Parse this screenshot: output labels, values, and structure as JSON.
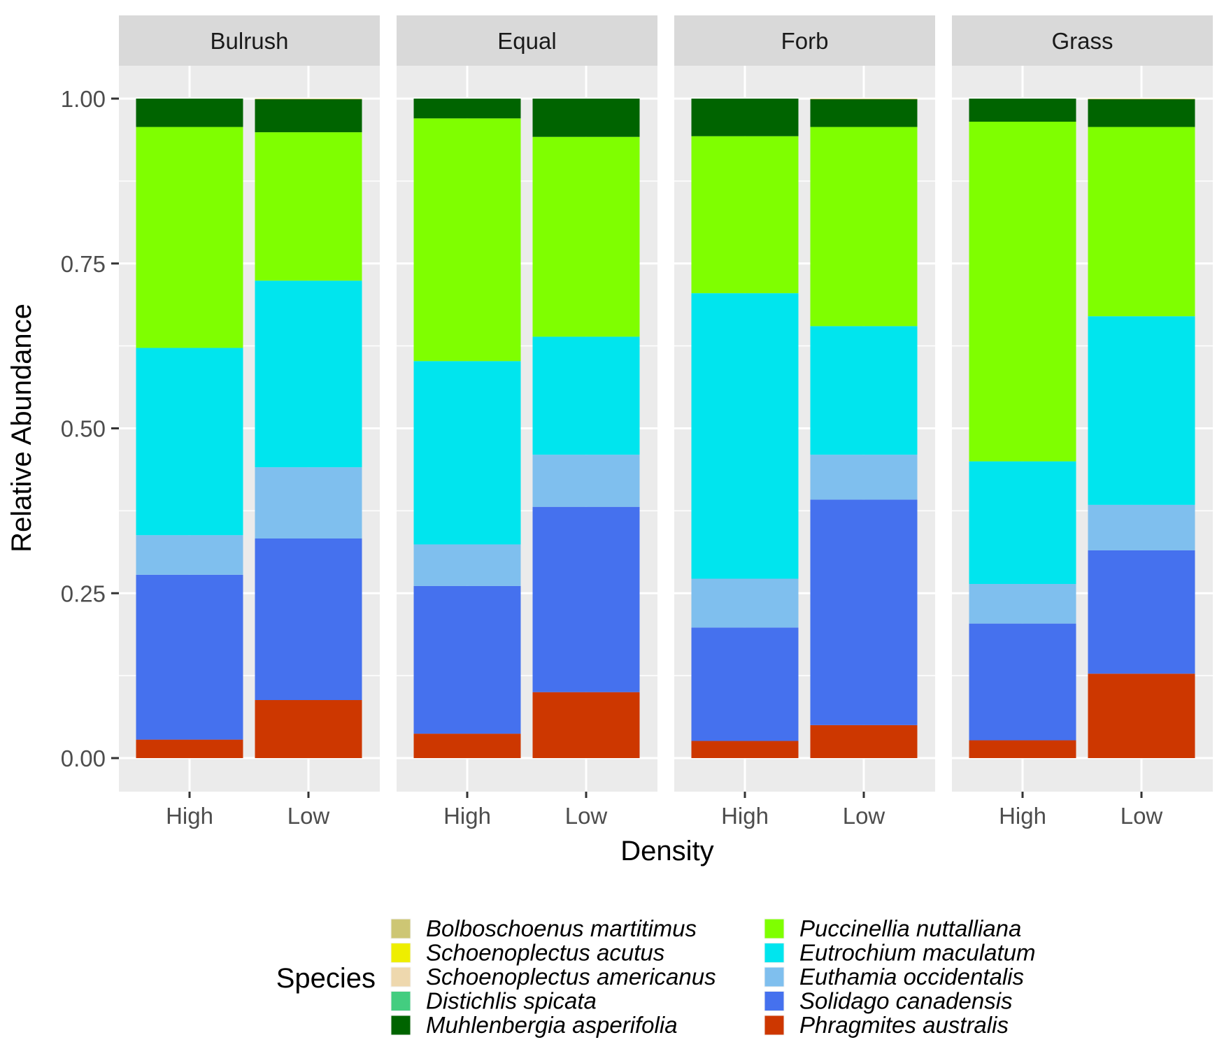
{
  "chart_data": {
    "type": "bar",
    "stacked": true,
    "x_label": "Density",
    "y_label": "Relative Abundance",
    "y_range": [
      0,
      1
    ],
    "y_ticks": [
      "0.00",
      "0.25",
      "0.50",
      "0.75",
      "1.00"
    ],
    "categories": [
      "High",
      "Low"
    ],
    "facets": [
      "Bulrush",
      "Equal",
      "Forb",
      "Grass"
    ],
    "legend_title": "Species",
    "legend_position": "bottom",
    "grid": true,
    "species": [
      {
        "name": "Bolboschoenus martitimus",
        "color": "#cdc674"
      },
      {
        "name": "Schoenoplectus acutus",
        "color": "#eeee00"
      },
      {
        "name": "Schoenoplectus americanus",
        "color": "#eed8ae"
      },
      {
        "name": "Distichlis spicata",
        "color": "#43cd80"
      },
      {
        "name": "Muhlenbergia asperifolia",
        "color": "#006400"
      },
      {
        "name": "Puccinellia nuttalliana",
        "color": "#7fff00"
      },
      {
        "name": "Eutrochium maculatum",
        "color": "#00e5ee"
      },
      {
        "name": "Euthamia occidentalis",
        "color": "#7fbfee"
      },
      {
        "name": "Solidago canadensis",
        "color": "#4571ee"
      },
      {
        "name": "Phragmites australis",
        "color": "#cd3700"
      }
    ],
    "stack_order_bottom_to_top": [
      "Phragmites australis",
      "Solidago canadensis",
      "Euthamia occidentalis",
      "Eutrochium maculatum",
      "Puccinellia nuttalliana",
      "Muhlenbergia asperifolia",
      "Distichlis spicata",
      "Schoenoplectus americanus",
      "Schoenoplectus acutus",
      "Bolboschoenus martitimus"
    ],
    "data": [
      {
        "facet": "Bulrush",
        "category": "High",
        "values": {
          "Phragmites australis": 0.028,
          "Solidago canadensis": 0.25,
          "Euthamia occidentalis": 0.06,
          "Eutrochium maculatum": 0.284,
          "Puccinellia nuttalliana": 0.335,
          "Muhlenbergia asperifolia": 0.043,
          "Distichlis spicata": 0,
          "Schoenoplectus americanus": 0,
          "Schoenoplectus acutus": 0,
          "Bolboschoenus martitimus": 0
        }
      },
      {
        "facet": "Bulrush",
        "category": "Low",
        "values": {
          "Phragmites australis": 0.088,
          "Solidago canadensis": 0.245,
          "Euthamia occidentalis": 0.108,
          "Eutrochium maculatum": 0.283,
          "Puccinellia nuttalliana": 0.225,
          "Muhlenbergia asperifolia": 0.05,
          "Distichlis spicata": 0,
          "Schoenoplectus americanus": 0,
          "Schoenoplectus acutus": 0,
          "Bolboschoenus martitimus": 0.001
        }
      },
      {
        "facet": "Equal",
        "category": "High",
        "values": {
          "Phragmites australis": 0.037,
          "Solidago canadensis": 0.224,
          "Euthamia occidentalis": 0.063,
          "Eutrochium maculatum": 0.278,
          "Puccinellia nuttalliana": 0.368,
          "Muhlenbergia asperifolia": 0.03,
          "Distichlis spicata": 0,
          "Schoenoplectus americanus": 0,
          "Schoenoplectus acutus": 0,
          "Bolboschoenus martitimus": 0
        }
      },
      {
        "facet": "Equal",
        "category": "Low",
        "values": {
          "Phragmites australis": 0.1,
          "Solidago canadensis": 0.281,
          "Euthamia occidentalis": 0.079,
          "Eutrochium maculatum": 0.179,
          "Puccinellia nuttalliana": 0.303,
          "Muhlenbergia asperifolia": 0.058,
          "Distichlis spicata": 0,
          "Schoenoplectus americanus": 0,
          "Schoenoplectus acutus": 0,
          "Bolboschoenus martitimus": 0
        }
      },
      {
        "facet": "Forb",
        "category": "High",
        "values": {
          "Phragmites australis": 0.026,
          "Solidago canadensis": 0.172,
          "Euthamia occidentalis": 0.074,
          "Eutrochium maculatum": 0.433,
          "Puccinellia nuttalliana": 0.238,
          "Muhlenbergia asperifolia": 0.057,
          "Distichlis spicata": 0,
          "Schoenoplectus americanus": 0,
          "Schoenoplectus acutus": 0,
          "Bolboschoenus martitimus": 0
        }
      },
      {
        "facet": "Forb",
        "category": "Low",
        "values": {
          "Phragmites australis": 0.05,
          "Solidago canadensis": 0.342,
          "Euthamia occidentalis": 0.068,
          "Eutrochium maculatum": 0.195,
          "Puccinellia nuttalliana": 0.302,
          "Muhlenbergia asperifolia": 0.042,
          "Distichlis spicata": 0,
          "Schoenoplectus americanus": 0,
          "Schoenoplectus acutus": 0,
          "Bolboschoenus martitimus": 0.001
        }
      },
      {
        "facet": "Grass",
        "category": "High",
        "values": {
          "Phragmites australis": 0.027,
          "Solidago canadensis": 0.177,
          "Euthamia occidentalis": 0.06,
          "Eutrochium maculatum": 0.186,
          "Puccinellia nuttalliana": 0.515,
          "Muhlenbergia asperifolia": 0.035,
          "Distichlis spicata": 0,
          "Schoenoplectus americanus": 0,
          "Schoenoplectus acutus": 0,
          "Bolboschoenus martitimus": 0
        }
      },
      {
        "facet": "Grass",
        "category": "Low",
        "values": {
          "Phragmites australis": 0.128,
          "Solidago canadensis": 0.187,
          "Euthamia occidentalis": 0.069,
          "Eutrochium maculatum": 0.286,
          "Puccinellia nuttalliana": 0.287,
          "Muhlenbergia asperifolia": 0.042,
          "Distichlis spicata": 0,
          "Schoenoplectus americanus": 0,
          "Schoenoplectus acutus": 0,
          "Bolboschoenus martitimus": 0.001
        }
      }
    ]
  }
}
